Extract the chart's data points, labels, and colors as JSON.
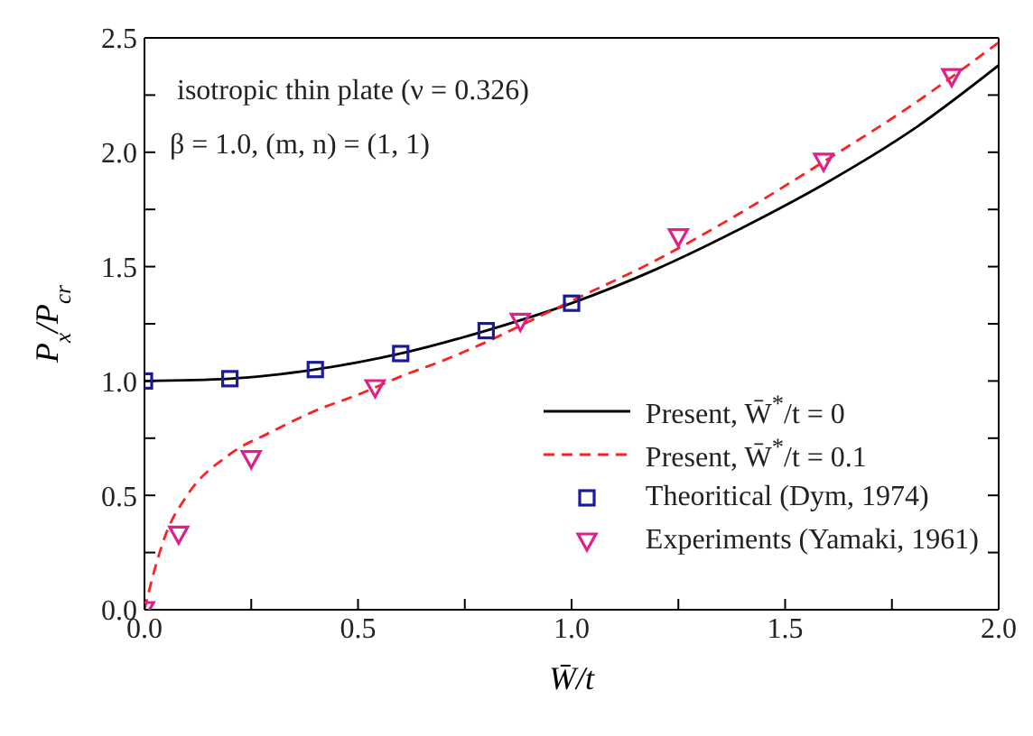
{
  "chart_data": {
    "type": "line",
    "xlabel": "W̄/t",
    "ylabel": "P$_{x}$/P$_{cr}$",
    "annotations": [
      "isotropic thin plate (ν = 0.326)",
      "β = 1.0, (m, n) = (1, 1)"
    ],
    "xlim": [
      0,
      2
    ],
    "ylim": [
      0,
      2.5
    ],
    "xticks": [
      {
        "value": 0,
        "label": "0.0"
      },
      {
        "value": 0.25,
        "label": null
      },
      {
        "value": 0.5,
        "label": "0.5"
      },
      {
        "value": 0.75,
        "label": null
      },
      {
        "value": 1,
        "label": "1.0"
      },
      {
        "value": 1.25,
        "label": null
      },
      {
        "value": 1.5,
        "label": "1.5"
      },
      {
        "value": 1.75,
        "label": null
      },
      {
        "value": 2,
        "label": "2.0"
      }
    ],
    "yticks": [
      {
        "value": 0,
        "label": "0.0"
      },
      {
        "value": 0.25,
        "label": null
      },
      {
        "value": 0.5,
        "label": "0.5"
      },
      {
        "value": 0.75,
        "label": null
      },
      {
        "value": 1,
        "label": "1.0"
      },
      {
        "value": 1.25,
        "label": null
      },
      {
        "value": 1.5,
        "label": "1.5"
      },
      {
        "value": 1.75,
        "label": null
      },
      {
        "value": 2,
        "label": "2.0"
      },
      {
        "value": 2.25,
        "label": null
      },
      {
        "value": 2.5,
        "label": "2.5"
      }
    ],
    "grid": false,
    "legend": "bottom right",
    "series": [
      {
        "name": "Present, W̄$^{*}$/t = 0",
        "color": "#000000",
        "line_style": "solid",
        "marker": "none",
        "x": [
          0,
          0.2,
          0.4,
          0.6,
          0.8,
          1.0,
          1.2,
          1.4,
          1.6,
          1.8,
          2.0
        ],
        "values": [
          1.0,
          1.01,
          1.05,
          1.12,
          1.22,
          1.34,
          1.49,
          1.67,
          1.87,
          2.1,
          2.38
        ]
      },
      {
        "name": "Present, W̄$^{*}$/t = 0.1",
        "color": "#ff2020",
        "line_style": "dashed",
        "marker": "none",
        "x": [
          0,
          0.02,
          0.05,
          0.1,
          0.2,
          0.3,
          0.4,
          0.5,
          0.6,
          0.7,
          0.8,
          0.9,
          1.0,
          1.2,
          1.4,
          1.6,
          1.8,
          2.0
        ],
        "values": [
          0,
          0.15,
          0.33,
          0.5,
          0.68,
          0.78,
          0.87,
          0.94,
          1.02,
          1.09,
          1.17,
          1.26,
          1.35,
          1.53,
          1.74,
          1.97,
          2.21,
          2.48
        ]
      },
      {
        "name": "Theoritical (Dym, 1974)",
        "type": "scatter",
        "color": "#1a1a9a",
        "marker": "square",
        "x": [
          0,
          0.2,
          0.4,
          0.6,
          0.8,
          1.0
        ],
        "values": [
          1.0,
          1.01,
          1.05,
          1.12,
          1.22,
          1.34
        ]
      },
      {
        "name": "Experiments (Yamaki, 1961)",
        "type": "scatter",
        "color": "#e0208a",
        "marker": "triangle",
        "x": [
          0,
          0.08,
          0.25,
          0.54,
          0.88,
          1.25,
          1.59,
          1.89
        ],
        "values": [
          0,
          0.33,
          0.66,
          0.97,
          1.26,
          1.63,
          1.96,
          2.33
        ]
      }
    ]
  }
}
